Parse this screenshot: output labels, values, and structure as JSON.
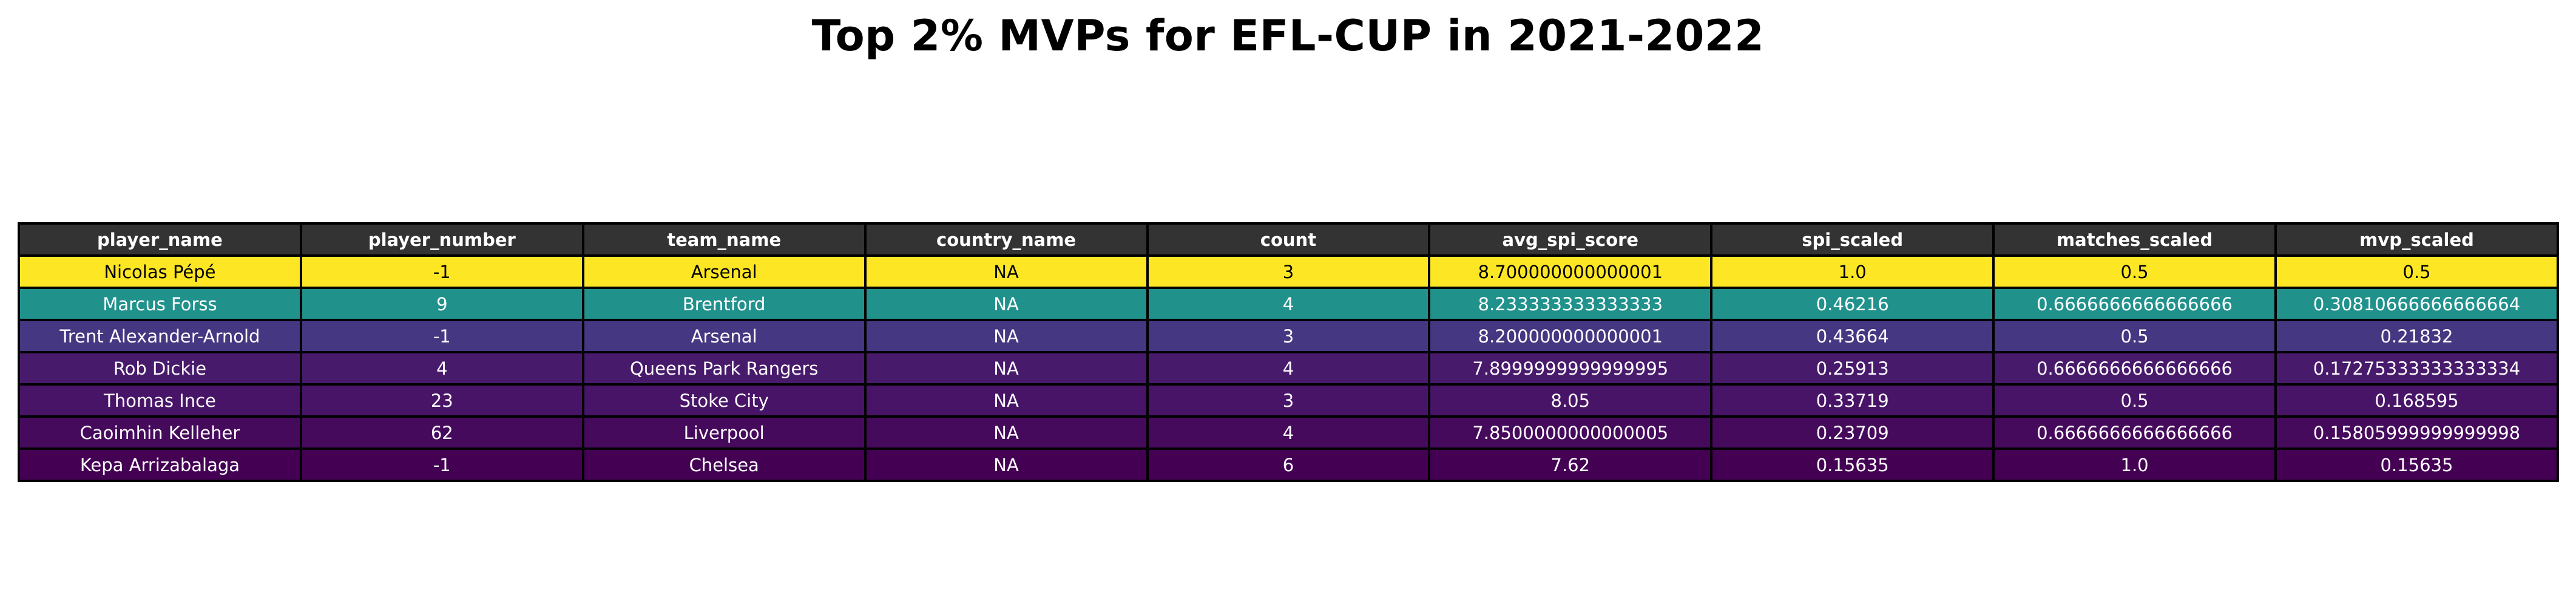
{
  "chart_data": {
    "type": "table",
    "title": "Top 2% MVPs for EFL-CUP in 2021-2022",
    "columns": [
      "player_name",
      "player_number",
      "team_name",
      "country_name",
      "count",
      "avg_spi_score",
      "spi_scaled",
      "matches_scaled",
      "mvp_scaled"
    ],
    "header_colors": {
      "background": "#333333",
      "text": "#ffffff"
    },
    "rows": [
      {
        "cells": [
          "Nicolas Pépé",
          "-1",
          "Arsenal",
          "NA",
          "3",
          "8.700000000000001",
          "1.0",
          "0.5",
          "0.5"
        ],
        "bg": "#fde725",
        "fg": "#000000"
      },
      {
        "cells": [
          "Marcus Forss",
          "9",
          "Brentford",
          "NA",
          "4",
          "8.233333333333333",
          "0.46216",
          "0.6666666666666666",
          "0.30810666666666664"
        ],
        "bg": "#21918c",
        "fg": "#ffffff"
      },
      {
        "cells": [
          "Trent Alexander-Arnold",
          "-1",
          "Arsenal",
          "NA",
          "3",
          "8.200000000000001",
          "0.43664",
          "0.5",
          "0.21832"
        ],
        "bg": "#453781",
        "fg": "#ffffff"
      },
      {
        "cells": [
          "Rob Dickie",
          "4",
          "Queens Park Rangers",
          "NA",
          "4",
          "7.8999999999999995",
          "0.25913",
          "0.6666666666666666",
          "0.17275333333333334"
        ],
        "bg": "#481a6c",
        "fg": "#ffffff"
      },
      {
        "cells": [
          "Thomas Ince",
          "23",
          "Stoke City",
          "NA",
          "3",
          "8.05",
          "0.33719",
          "0.5",
          "0.168595"
        ],
        "bg": "#481467",
        "fg": "#ffffff"
      },
      {
        "cells": [
          "Caoimhin Kelleher",
          "62",
          "Liverpool",
          "NA",
          "4",
          "7.8500000000000005",
          "0.23709",
          "0.6666666666666666",
          "0.15805999999999998"
        ],
        "bg": "#460a5d",
        "fg": "#ffffff"
      },
      {
        "cells": [
          "Kepa Arrizabalaga",
          "-1",
          "Chelsea",
          "NA",
          "6",
          "7.62",
          "0.15635",
          "1.0",
          "0.15635"
        ],
        "bg": "#440154",
        "fg": "#ffffff"
      }
    ]
  }
}
